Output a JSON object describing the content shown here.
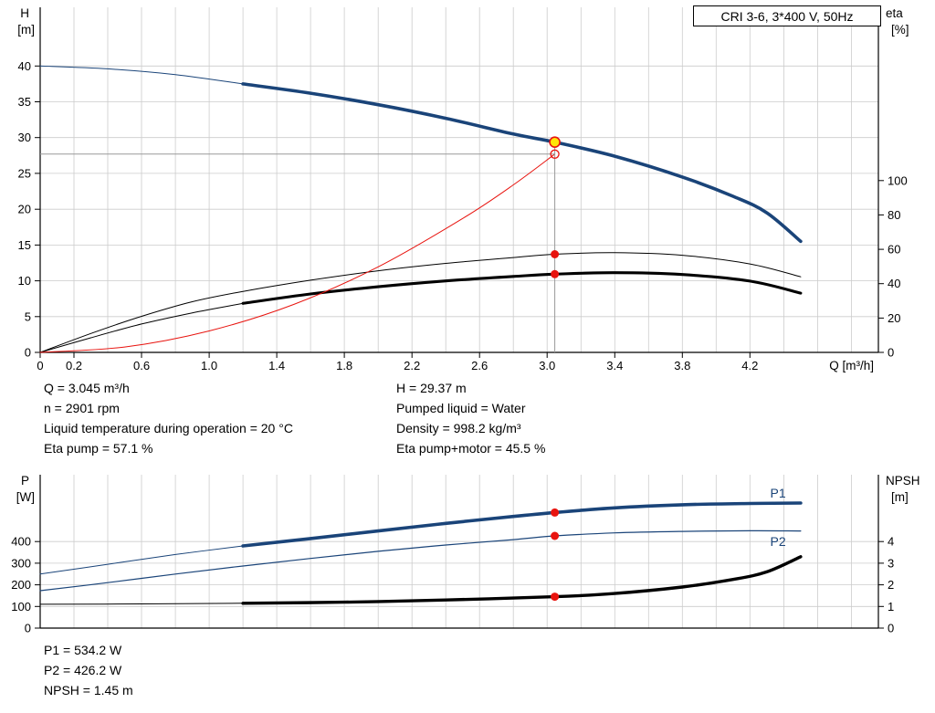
{
  "title_box": {
    "text": "CRI 3-6, 3*400 V, 50Hz"
  },
  "colors": {
    "blue": "#1a4479",
    "black": "#000000",
    "red": "#e8140f",
    "yellow": "#ffe509",
    "grid": "#cccccc",
    "crosshair": "#999999",
    "axis": "#000000"
  },
  "info_panel": {
    "left": [
      "Q = 3.045 m³/h",
      "n = 2901 rpm",
      "Liquid temperature during operation = 20 °C",
      "Eta pump = 57.1 %"
    ],
    "right": [
      "H = 29.37 m",
      "Pumped liquid = Water",
      "Density = 998.2 kg/m³",
      "Eta pump+motor = 45.5 %"
    ]
  },
  "result_panel": [
    "P1 = 534.2 W",
    "P2 = 426.2 W",
    "NPSH = 1.45 m"
  ],
  "chart_data": [
    {
      "id": "qh-eta-chart",
      "type": "line",
      "title": "CRI 3-6, 3*400 V, 50Hz",
      "x_axis": {
        "label": "Q [m³/h]",
        "min": 0,
        "max": 4.96,
        "grid_step": 0.2,
        "ticks": [
          {
            "v": 0,
            "t": "0"
          },
          {
            "v": 0.2,
            "t": "0.2"
          },
          {
            "v": 0.6,
            "t": "0.6"
          },
          {
            "v": 1.0,
            "t": "1.0"
          },
          {
            "v": 1.4,
            "t": "1.4"
          },
          {
            "v": 1.8,
            "t": "1.8"
          },
          {
            "v": 2.2,
            "t": "2.2"
          },
          {
            "v": 2.6,
            "t": "2.6"
          },
          {
            "v": 3.0,
            "t": "3.0"
          },
          {
            "v": 3.4,
            "t": "3.4"
          },
          {
            "v": 3.8,
            "t": "3.8"
          },
          {
            "v": 4.2,
            "t": "4.2"
          }
        ]
      },
      "y_left": {
        "label_1": "H",
        "label_2": "[m]",
        "min": 0,
        "max": 48.2,
        "ticks": [
          0,
          5,
          10,
          15,
          20,
          25,
          30,
          35,
          40
        ],
        "grid": true
      },
      "y_right": {
        "label_1": "eta",
        "label_2": "[%]",
        "min": 0,
        "max": 200.8,
        "ticks": [
          0,
          20,
          40,
          60,
          80,
          100
        ]
      },
      "series": [
        {
          "name": "qh-curve-extension",
          "color": "blue",
          "width": 1,
          "axis": "left",
          "points": [
            [
              0,
              40
            ],
            [
              0.4,
              39.6
            ],
            [
              0.8,
              38.8
            ],
            [
              1.2,
              37.5
            ]
          ]
        },
        {
          "name": "qh-curve",
          "color": "blue",
          "width": 3.6,
          "axis": "left",
          "points": [
            [
              1.2,
              37.5
            ],
            [
              1.6,
              36.2
            ],
            [
              2.0,
              34.6
            ],
            [
              2.4,
              32.7
            ],
            [
              2.8,
              30.5
            ],
            [
              3.045,
              29.37
            ],
            [
              3.4,
              27.4
            ],
            [
              3.8,
              24.5
            ],
            [
              4.1,
              21.8
            ],
            [
              4.3,
              19.5
            ],
            [
              4.5,
              15.5
            ]
          ]
        },
        {
          "name": "eta-pump-curve",
          "color": "black",
          "width": 1,
          "axis": "right",
          "points": [
            [
              0,
              0
            ],
            [
              0.3,
              11
            ],
            [
              0.6,
              21
            ],
            [
              0.9,
              29.5
            ],
            [
              1.2,
              35.5
            ],
            [
              1.6,
              42
            ],
            [
              2.0,
              47.5
            ],
            [
              2.4,
              51.8
            ],
            [
              2.8,
              55.2
            ],
            [
              3.045,
              57.1
            ],
            [
              3.4,
              58
            ],
            [
              3.8,
              56.5
            ],
            [
              4.2,
              51.5
            ],
            [
              4.5,
              44
            ]
          ]
        },
        {
          "name": "eta-pump-motor-curve-extension",
          "color": "black",
          "width": 1,
          "axis": "right",
          "points": [
            [
              0,
              0
            ],
            [
              0.3,
              8.5
            ],
            [
              0.6,
              16.5
            ],
            [
              0.9,
              23
            ],
            [
              1.2,
              28.5
            ]
          ]
        },
        {
          "name": "eta-pump-motor-curve",
          "color": "black",
          "width": 3.1,
          "axis": "right",
          "points": [
            [
              1.2,
              28.5
            ],
            [
              1.6,
              34
            ],
            [
              2.0,
              38.2
            ],
            [
              2.4,
              41.6
            ],
            [
              2.8,
              44.2
            ],
            [
              3.045,
              45.5
            ],
            [
              3.4,
              46.4
            ],
            [
              3.8,
              45.3
            ],
            [
              4.2,
              41.5
            ],
            [
              4.5,
              34.5
            ]
          ]
        },
        {
          "name": "system-curve",
          "color": "red",
          "width": 1,
          "axis": "left",
          "points": [
            [
              0,
              0
            ],
            [
              0.5,
              0.75
            ],
            [
              1.0,
              3.0
            ],
            [
              1.5,
              6.7
            ],
            [
              2.0,
              11.95
            ],
            [
              2.5,
              18.7
            ],
            [
              2.8,
              23.4
            ],
            [
              3.045,
              27.7
            ]
          ]
        }
      ],
      "crosshair": {
        "q": 3.045,
        "h_top": 29.37,
        "h_line": 27.7
      },
      "markers": [
        {
          "name": "duty-point-marker",
          "q": 3.045,
          "v": 29.37,
          "axis": "left",
          "r": 5.5,
          "fill": "yellow",
          "stroke": "red",
          "sw": 1.6,
          "interactable": true
        },
        {
          "name": "requested-duty-marker",
          "q": 3.045,
          "v": 27.7,
          "axis": "left",
          "r": 4.5,
          "fill": "none",
          "stroke": "red",
          "sw": 1.3,
          "interactable": false
        },
        {
          "name": "eta-pump-duty-marker",
          "q": 3.045,
          "v": 57.1,
          "axis": "right",
          "r": 4.5,
          "fill": "red",
          "interactable": false
        },
        {
          "name": "eta-pump-motor-duty-marker",
          "q": 3.045,
          "v": 45.5,
          "axis": "right",
          "r": 4.5,
          "fill": "red",
          "interactable": false
        }
      ],
      "series_labels": []
    },
    {
      "id": "power-npsh-chart",
      "type": "line",
      "x_axis": {
        "label": "",
        "min": 0,
        "max": 4.96,
        "grid_step": 0.2,
        "ticks": []
      },
      "y_left": {
        "label_1": "P",
        "label_2": "[W]",
        "min": 0,
        "max": 709,
        "ticks": [
          0,
          100,
          200,
          300,
          400
        ],
        "grid": true
      },
      "y_right": {
        "label_1": "NPSH",
        "label_2": "[m]",
        "min": 0,
        "max": 7.09,
        "ticks": [
          0,
          1,
          2,
          3,
          4
        ]
      },
      "series": [
        {
          "name": "p1-curve-extension",
          "color": "blue",
          "width": 1,
          "axis": "left",
          "points": [
            [
              0,
              250
            ],
            [
              0.4,
              295
            ],
            [
              0.8,
              340
            ],
            [
              1.2,
              380
            ]
          ]
        },
        {
          "name": "p1-curve",
          "color": "blue",
          "width": 3.6,
          "axis": "left",
          "points": [
            [
              1.2,
              380
            ],
            [
              1.6,
              414
            ],
            [
              2.0,
              449
            ],
            [
              2.4,
              484
            ],
            [
              2.8,
              516
            ],
            [
              3.045,
              534.2
            ],
            [
              3.4,
              556
            ],
            [
              3.8,
              570
            ],
            [
              4.2,
              576
            ],
            [
              4.5,
              578
            ]
          ]
        },
        {
          "name": "p2-curve",
          "color": "blue",
          "width": 1.2,
          "axis": "left",
          "points": [
            [
              0,
              173
            ],
            [
              0.4,
              210
            ],
            [
              0.8,
              250
            ],
            [
              1.2,
              287
            ],
            [
              1.6,
              322
            ],
            [
              2.0,
              355
            ],
            [
              2.4,
              384
            ],
            [
              2.8,
              409
            ],
            [
              3.045,
              426.2
            ],
            [
              3.4,
              440
            ],
            [
              3.8,
              447
            ],
            [
              4.2,
              450
            ],
            [
              4.5,
              449
            ]
          ]
        },
        {
          "name": "npsh-curve-extension",
          "color": "black",
          "width": 1,
          "axis": "right",
          "points": [
            [
              0,
              1.1
            ],
            [
              0.6,
              1.12
            ],
            [
              1.2,
              1.15
            ]
          ]
        },
        {
          "name": "npsh-curve",
          "color": "black",
          "width": 3.4,
          "axis": "right",
          "points": [
            [
              1.2,
              1.15
            ],
            [
              1.8,
              1.2
            ],
            [
              2.4,
              1.3
            ],
            [
              3.045,
              1.45
            ],
            [
              3.4,
              1.6
            ],
            [
              3.8,
              1.9
            ],
            [
              4.1,
              2.25
            ],
            [
              4.3,
              2.6
            ],
            [
              4.5,
              3.3
            ]
          ]
        }
      ],
      "markers": [
        {
          "name": "p1-duty-marker",
          "q": 3.045,
          "v": 534.2,
          "axis": "left",
          "r": 4.5,
          "fill": "red",
          "interactable": false
        },
        {
          "name": "p2-duty-marker",
          "q": 3.045,
          "v": 426.2,
          "axis": "left",
          "r": 4.5,
          "fill": "red",
          "interactable": false
        },
        {
          "name": "npsh-duty-marker",
          "q": 3.045,
          "v": 1.45,
          "axis": "right",
          "r": 4.5,
          "fill": "red",
          "interactable": false
        }
      ],
      "series_labels": [
        {
          "name": "p1-series-label",
          "text": "P1",
          "q": 4.32,
          "v": 620,
          "axis": "left",
          "color": "blue"
        },
        {
          "name": "p2-series-label",
          "text": "P2",
          "q": 4.32,
          "v": 396,
          "axis": "left",
          "color": "blue"
        }
      ]
    }
  ]
}
